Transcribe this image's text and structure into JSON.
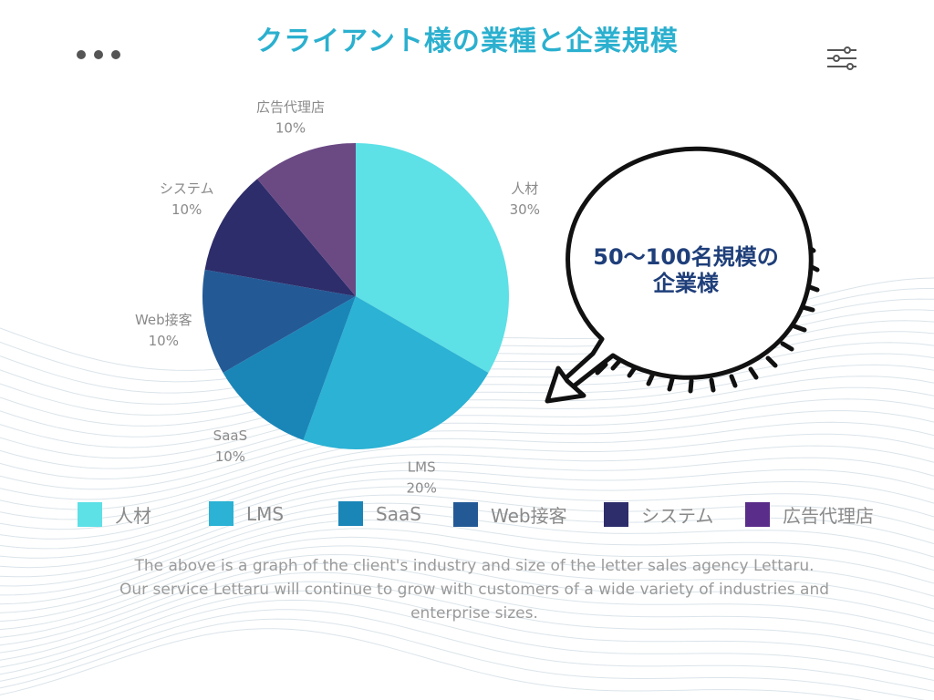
{
  "header": {
    "title": "クライアント様の業種と企業規模",
    "more_icon": "more-dots-icon",
    "settings_icon": "sliders-icon"
  },
  "callout": {
    "line1": "50〜100名規模の",
    "line2": "企業様"
  },
  "caption": {
    "line1": "The above is a graph of the client's industry and size of the letter sales agency Lettaru.",
    "line2": "Our service Lettaru will continue to grow with customers of a wide variety of industries and",
    "line3": "enterprise sizes."
  },
  "chart_data": {
    "type": "pie",
    "title": "クライアント様の業種と企業規模",
    "categories": [
      "人材",
      "LMS",
      "SaaS",
      "Web接客",
      "システム",
      "広告代理店"
    ],
    "values": [
      30,
      20,
      10,
      10,
      10,
      10
    ],
    "value_labels": [
      "30%",
      "20%",
      "10%",
      "10%",
      "10%",
      "10%"
    ],
    "colors": [
      "#5de0e6",
      "#2bb2d4",
      "#1a86b8",
      "#235a96",
      "#2d2d6b",
      "#6b4a84"
    ],
    "legend_colors": [
      "#5de0e6",
      "#2bb2d4",
      "#1a86b8",
      "#235a96",
      "#2d2d6b",
      "#5a2d8a"
    ],
    "legend_position": "bottom"
  }
}
